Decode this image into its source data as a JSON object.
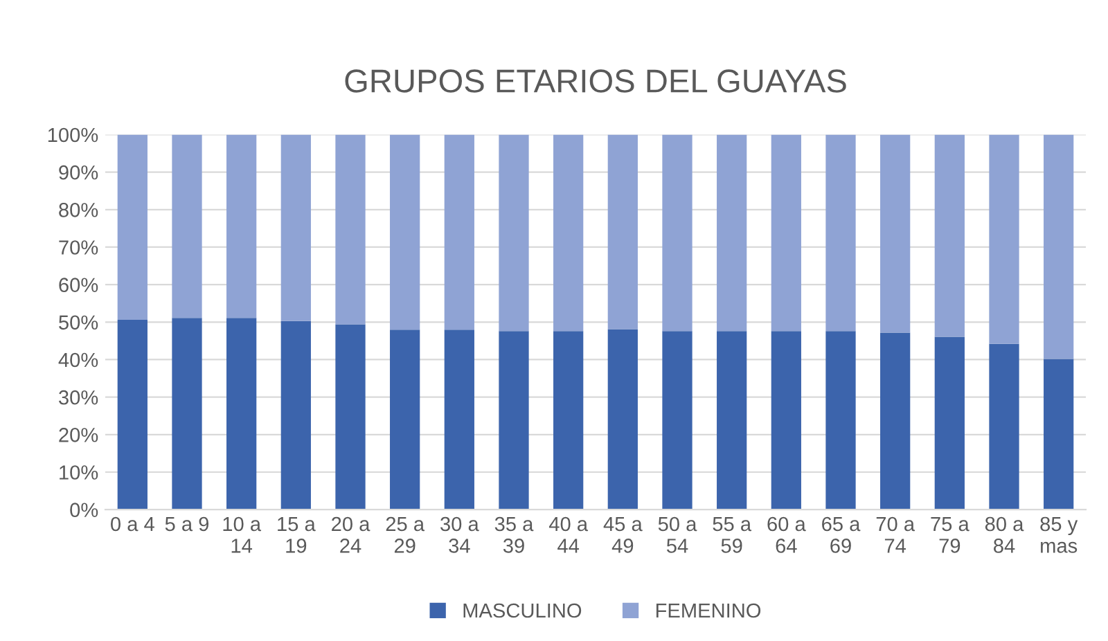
{
  "chart_data": {
    "type": "bar",
    "title": "GRUPOS ETARIOS DEL GUAYAS",
    "stacked": true,
    "categories": [
      "0 a 4",
      "5 a 9",
      "10 a\n14",
      "15 a\n19",
      "20 a\n24",
      "25 a\n29",
      "30 a\n34",
      "35 a\n39",
      "40 a\n44",
      "45 a\n49",
      "50 a\n54",
      "55 a\n59",
      "60 a\n64",
      "65 a\n69",
      "70 a\n74",
      "75 a\n79",
      "80 a\n84",
      "85 y\nmas"
    ],
    "series": [
      {
        "name": "MASCULINO",
        "color": "#3c64ac",
        "values": [
          50.6,
          51.1,
          51.1,
          50.3,
          49.4,
          48.0,
          48.0,
          47.6,
          47.6,
          48.1,
          47.6,
          47.6,
          47.6,
          47.6,
          47.2,
          46.1,
          44.2,
          40.2
        ]
      },
      {
        "name": "FEMENINO",
        "color": "#8fa3d4",
        "values": [
          49.4,
          48.9,
          48.9,
          49.7,
          50.6,
          52.0,
          52.0,
          52.4,
          52.4,
          51.9,
          52.4,
          52.4,
          52.4,
          52.4,
          52.8,
          53.9,
          55.8,
          59.8
        ]
      }
    ],
    "ylim": [
      0,
      100
    ],
    "yticks": [
      {
        "value": 0,
        "label": "0%"
      },
      {
        "value": 10,
        "label": "10%"
      },
      {
        "value": 20,
        "label": "20%"
      },
      {
        "value": 30,
        "label": "30%"
      },
      {
        "value": 40,
        "label": "40%"
      },
      {
        "value": 50,
        "label": "50%"
      },
      {
        "value": 60,
        "label": "60%"
      },
      {
        "value": 70,
        "label": "70%"
      },
      {
        "value": 80,
        "label": "80%"
      },
      {
        "value": 90,
        "label": "90%"
      },
      {
        "value": 100,
        "label": "100%"
      }
    ],
    "grid": "y",
    "legend": "bottom"
  }
}
